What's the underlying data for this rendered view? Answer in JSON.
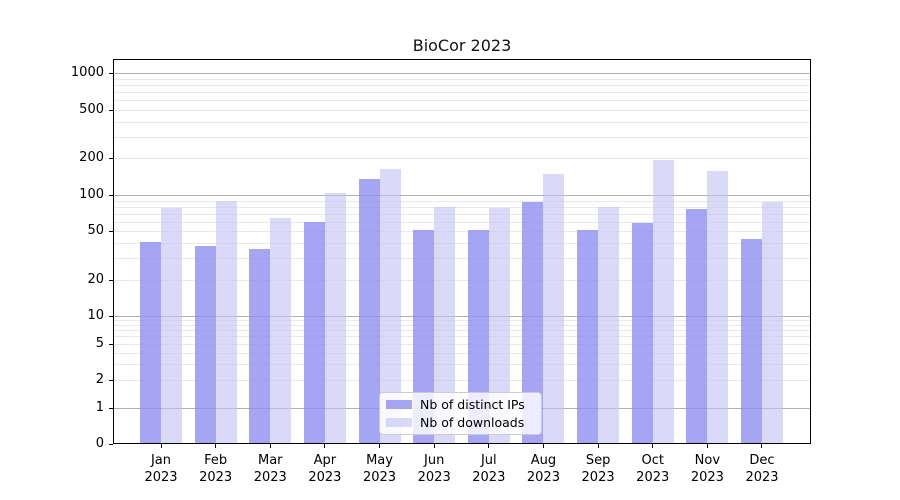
{
  "chart_data": {
    "type": "bar",
    "title": "BioCor 2023",
    "categories": [
      "Jan 2023",
      "Feb 2023",
      "Mar 2023",
      "Apr 2023",
      "May 2023",
      "Jun 2023",
      "Jul 2023",
      "Aug 2023",
      "Sep 2023",
      "Oct 2023",
      "Nov 2023",
      "Dec 2023"
    ],
    "series": [
      {
        "name": "Nb of distinct IPs",
        "color": "#8F8FF0CC",
        "values": [
          41,
          38,
          36,
          60,
          135,
          51,
          51,
          88,
          51,
          59,
          76,
          43
        ]
      },
      {
        "name": "Nb of downloads",
        "color": "#C3C3F49E",
        "values": [
          78,
          90,
          64,
          103,
          162,
          79,
          78,
          150,
          80,
          192,
          158,
          87
        ]
      }
    ],
    "yscale": "symlog",
    "yticks": [
      0,
      1,
      2,
      5,
      10,
      20,
      50,
      100,
      200,
      500,
      1000
    ],
    "ylim": [
      0,
      1300
    ],
    "xlabel": "",
    "ylabel": "",
    "grid": true,
    "legend_position": "lower center",
    "colors": {
      "distinct_ips_bar": "#8F8FF0CC",
      "downloads_bar": "#C3C3F49E",
      "major_grid": "#b0b0b0",
      "minor_grid": "#e9e9e9",
      "axis": "#000000",
      "background": "#ffffff",
      "text": "#000000"
    }
  }
}
